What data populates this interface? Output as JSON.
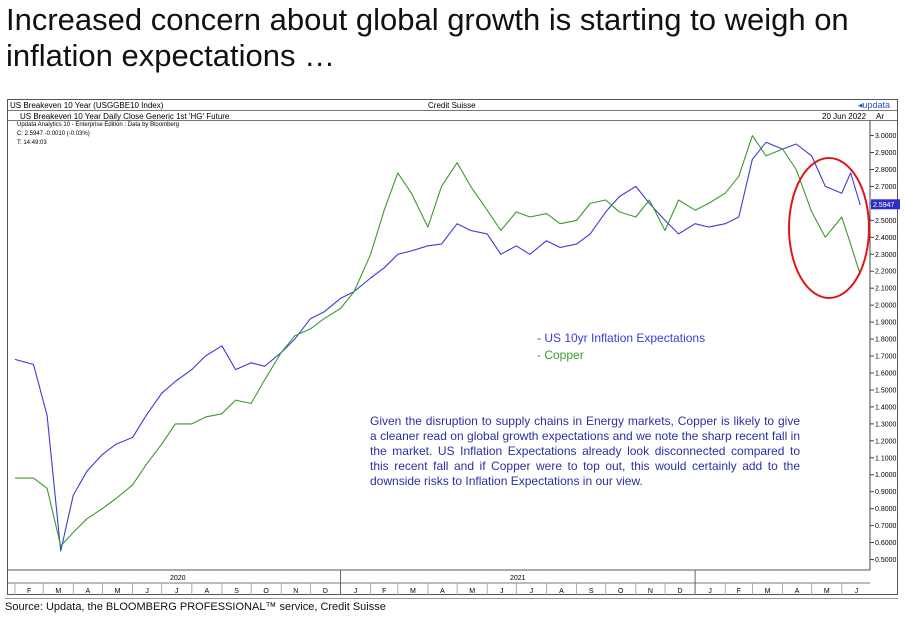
{
  "headline": "Increased concern about global growth is starting to weigh on inflation expectations …",
  "panel": {
    "top_left": "US Breakeven 10 Year (USGGBE10 Index)",
    "top_center": "Credit Suisse",
    "top_right": "updata",
    "sub_left": "US Breakeven 10 Year Daily Close   Generic 1st 'HG' Future",
    "sub_date": "20 Jun 2022",
    "sub_right": "Ar",
    "info1": "Updata Analytics 10 - Enterprise Edition : Data by Bloomberg",
    "info2": "C: 2.5947  -0.0010 (-0.03%)",
    "info3": "T: 14:49:03"
  },
  "legend": {
    "series1": "- US 10yr Inflation Expectations",
    "series2": "- Copper"
  },
  "annotation": "Given the disruption to supply chains in Energy markets, Copper is likely to give a cleaner read on global growth expectations and we note the sharp recent fall in the market. US Inflation Expectations already look disconnected compared to this recent fall and if Copper were to top out, this would certainly add to the downside risks to Inflation Expectations in our view.",
  "source": "Source: Updata, the BLOOMBERG PROFESSIONAL™ service, Credit Suisse",
  "colors": {
    "breakeven": "#3b3bd6",
    "copper": "#3c9a2c",
    "circle": "#e0161a",
    "last_label_bg": "#2f2fc8"
  },
  "chart_data": {
    "type": "line",
    "x_range": [
      "2020-02-01",
      "2022-06-30"
    ],
    "ylim": [
      0.45,
      3.08
    ],
    "yticks": [
      "3.0000",
      "2.9000",
      "2.8000",
      "2.7000",
      "2.6000",
      "2.5000",
      "2.4000",
      "2.3000",
      "2.2000",
      "2.1000",
      "2.0000",
      "1.9000",
      "1.8000",
      "1.7000",
      "1.6000",
      "1.5000",
      "1.4000",
      "1.3000",
      "1.2000",
      "1.1000",
      "1.0000",
      "0.9000",
      "0.8000",
      "0.7000",
      "0.6000",
      "0.5000"
    ],
    "last_value_label": "2.5947",
    "year_labels": [
      "2020",
      "2021"
    ],
    "month_labels": [
      "F",
      "M",
      "A",
      "M",
      "J",
      "J",
      "A",
      "S",
      "O",
      "N",
      "D",
      "J",
      "F",
      "M",
      "A",
      "M",
      "J",
      "J",
      "A",
      "S",
      "O",
      "N",
      "D",
      "J",
      "F",
      "M",
      "A",
      "M",
      "J"
    ],
    "grid": false,
    "series": [
      {
        "name": "US 10yr Inflation Expectations",
        "x": [
          "2020-02-01",
          "2020-02-20",
          "2020-03-05",
          "2020-03-19",
          "2020-04-01",
          "2020-04-15",
          "2020-05-01",
          "2020-05-15",
          "2020-06-01",
          "2020-06-15",
          "2020-07-01",
          "2020-07-15",
          "2020-08-01",
          "2020-08-15",
          "2020-09-01",
          "2020-09-15",
          "2020-10-01",
          "2020-10-15",
          "2020-11-01",
          "2020-11-15",
          "2020-12-01",
          "2020-12-15",
          "2021-01-01",
          "2021-01-15",
          "2021-02-01",
          "2021-02-15",
          "2021-03-01",
          "2021-03-15",
          "2021-04-01",
          "2021-04-15",
          "2021-05-01",
          "2021-05-15",
          "2021-06-01",
          "2021-06-15",
          "2021-07-01",
          "2021-07-15",
          "2021-08-01",
          "2021-08-15",
          "2021-09-01",
          "2021-09-15",
          "2021-10-01",
          "2021-10-15",
          "2021-11-01",
          "2021-11-15",
          "2021-12-01",
          "2021-12-15",
          "2022-01-01",
          "2022-01-15",
          "2022-02-01",
          "2022-02-15",
          "2022-03-01",
          "2022-03-15",
          "2022-04-01",
          "2022-04-15",
          "2022-05-01",
          "2022-05-15",
          "2022-06-01",
          "2022-06-10",
          "2022-06-20"
        ],
        "values": [
          1.68,
          1.65,
          1.35,
          0.55,
          0.88,
          1.02,
          1.12,
          1.18,
          1.22,
          1.35,
          1.48,
          1.55,
          1.62,
          1.7,
          1.76,
          1.62,
          1.66,
          1.64,
          1.72,
          1.8,
          1.92,
          1.96,
          2.04,
          2.08,
          2.16,
          2.22,
          2.3,
          2.32,
          2.35,
          2.36,
          2.48,
          2.44,
          2.42,
          2.3,
          2.35,
          2.3,
          2.38,
          2.34,
          2.36,
          2.42,
          2.55,
          2.64,
          2.7,
          2.6,
          2.5,
          2.42,
          2.48,
          2.46,
          2.48,
          2.52,
          2.86,
          2.96,
          2.92,
          2.95,
          2.88,
          2.7,
          2.66,
          2.78,
          2.59
        ]
      },
      {
        "name": "Copper",
        "x": [
          "2020-02-01",
          "2020-02-20",
          "2020-03-05",
          "2020-03-19",
          "2020-04-01",
          "2020-04-15",
          "2020-05-01",
          "2020-05-15",
          "2020-06-01",
          "2020-06-15",
          "2020-07-01",
          "2020-07-15",
          "2020-08-01",
          "2020-08-15",
          "2020-09-01",
          "2020-09-15",
          "2020-10-01",
          "2020-10-15",
          "2020-11-01",
          "2020-11-15",
          "2020-12-01",
          "2020-12-15",
          "2021-01-01",
          "2021-01-15",
          "2021-02-01",
          "2021-02-15",
          "2021-03-01",
          "2021-03-15",
          "2021-04-01",
          "2021-04-15",
          "2021-05-01",
          "2021-05-15",
          "2021-06-01",
          "2021-06-15",
          "2021-07-01",
          "2021-07-15",
          "2021-08-01",
          "2021-08-15",
          "2021-09-01",
          "2021-09-15",
          "2021-10-01",
          "2021-10-15",
          "2021-11-01",
          "2021-11-15",
          "2021-12-01",
          "2021-12-15",
          "2022-01-01",
          "2022-01-15",
          "2022-02-01",
          "2022-02-15",
          "2022-03-01",
          "2022-03-15",
          "2022-04-01",
          "2022-04-15",
          "2022-05-01",
          "2022-05-15",
          "2022-06-01",
          "2022-06-10",
          "2022-06-20"
        ],
        "values": [
          0.98,
          0.98,
          0.92,
          0.58,
          0.66,
          0.74,
          0.8,
          0.86,
          0.94,
          1.06,
          1.18,
          1.3,
          1.3,
          1.34,
          1.36,
          1.44,
          1.42,
          1.56,
          1.72,
          1.82,
          1.86,
          1.92,
          1.98,
          2.08,
          2.3,
          2.56,
          2.78,
          2.66,
          2.46,
          2.7,
          2.84,
          2.7,
          2.56,
          2.44,
          2.55,
          2.52,
          2.54,
          2.48,
          2.5,
          2.6,
          2.62,
          2.55,
          2.52,
          2.62,
          2.44,
          2.62,
          2.56,
          2.6,
          2.66,
          2.76,
          3.0,
          2.88,
          2.92,
          2.8,
          2.55,
          2.4,
          2.52,
          2.36,
          2.18
        ]
      }
    ]
  }
}
